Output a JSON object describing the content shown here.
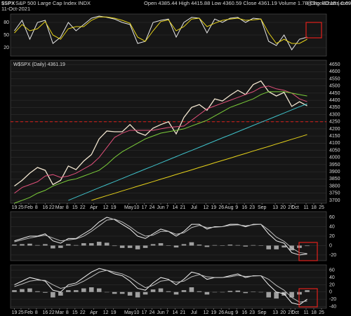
{
  "chart_data": [
    {
      "type": "line",
      "title": "$SPX",
      "subtitle": "S&P 500 Large Cap Index INDX",
      "date": "11-Oct-2021",
      "quote": "Open 4385.44 High 4415.88 Low 4360.59 Close 4361.19 Volume 1.7B Chg -30.15 (-0.69%)",
      "watermark": "@StockCharts.com",
      "x": [
        0,
        1,
        2,
        3,
        4,
        5,
        6,
        7,
        8,
        9,
        10,
        11,
        12,
        13,
        14,
        15,
        16,
        17,
        18,
        19,
        20,
        21,
        22,
        23,
        24,
        25,
        26,
        27,
        28,
        29,
        30,
        31,
        32,
        33,
        34,
        35,
        36,
        37,
        38
      ],
      "xlim": [
        -0.5,
        40.5
      ],
      "ylim": [
        0,
        100
      ],
      "yticks": [
        20,
        50,
        80
      ],
      "grid": true,
      "series": [
        {
          "color": "#e8e8e8",
          "values": [
            60,
            85,
            40,
            80,
            85,
            30,
            45,
            80,
            60,
            75,
            90,
            95,
            92,
            88,
            80,
            75,
            30,
            35,
            80,
            85,
            88,
            45,
            80,
            92,
            90,
            55,
            88,
            80,
            90,
            92,
            80,
            90,
            88,
            35,
            25,
            50,
            15,
            40,
            45
          ]
        },
        {
          "color": "#e6d21a",
          "values": [
            55,
            75,
            60,
            65,
            82,
            50,
            40,
            65,
            70,
            70,
            85,
            93,
            93,
            90,
            85,
            78,
            45,
            35,
            60,
            82,
            86,
            60,
            70,
            88,
            90,
            70,
            78,
            85,
            88,
            90,
            85,
            86,
            88,
            55,
            30,
            40,
            30,
            30,
            40
          ]
        }
      ]
    },
    {
      "type": "line",
      "label": "W$SPX (Daily) 4361.19",
      "x": [
        0,
        1,
        2,
        3,
        4,
        5,
        6,
        7,
        8,
        9,
        10,
        11,
        12,
        13,
        14,
        15,
        16,
        17,
        18,
        19,
        20,
        21,
        22,
        23,
        24,
        25,
        26,
        27,
        28,
        29,
        30,
        31,
        32,
        33,
        34,
        35,
        36,
        37,
        38
      ],
      "xlim": [
        -0.5,
        40.5
      ],
      "ylim": [
        3680,
        4680
      ],
      "yticks": [
        3700,
        3750,
        3800,
        3850,
        3900,
        3950,
        4000,
        4050,
        4100,
        4150,
        4200,
        4250,
        4300,
        4350,
        4400,
        4450,
        4500,
        4550,
        4600,
        4650
      ],
      "grid": true,
      "hline": 4250,
      "hline_color": "#e0201c",
      "xticks": [
        {
          "value": 0,
          "label": "19"
        },
        {
          "value": 0.86,
          "label": "25"
        },
        {
          "value": 1.86,
          "label": "Feb"
        },
        {
          "value": 2.86,
          "label": "8"
        },
        {
          "value": 4,
          "label": "16"
        },
        {
          "value": 4.86,
          "label": "22"
        },
        {
          "value": 5.86,
          "label": "Mar"
        },
        {
          "value": 6.86,
          "label": "8"
        },
        {
          "value": 7.86,
          "label": "15"
        },
        {
          "value": 8.86,
          "label": "22"
        },
        {
          "value": 10.3,
          "label": "Apr"
        },
        {
          "value": 11.86,
          "label": "12"
        },
        {
          "value": 12.86,
          "label": "19"
        },
        {
          "value": 14.86,
          "label": "May"
        },
        {
          "value": 15.86,
          "label": "10"
        },
        {
          "value": 16.86,
          "label": "17"
        },
        {
          "value": 17.86,
          "label": "24"
        },
        {
          "value": 19,
          "label": "Jun"
        },
        {
          "value": 19.86,
          "label": "7"
        },
        {
          "value": 20.86,
          "label": "14"
        },
        {
          "value": 21.86,
          "label": "21"
        },
        {
          "value": 23.3,
          "label": "Jul"
        },
        {
          "value": 24.86,
          "label": "12"
        },
        {
          "value": 25.86,
          "label": "19"
        },
        {
          "value": 26.86,
          "label": "26"
        },
        {
          "value": 27.86,
          "label": "Aug"
        },
        {
          "value": 28.86,
          "label": "9"
        },
        {
          "value": 29.86,
          "label": "16"
        },
        {
          "value": 30.86,
          "label": "23"
        },
        {
          "value": 32.14,
          "label": "Sep"
        },
        {
          "value": 33.86,
          "label": "13"
        },
        {
          "value": 34.86,
          "label": "20"
        },
        {
          "value": 35.86,
          "label": "27"
        },
        {
          "value": 36.43,
          "label": "Oct"
        },
        {
          "value": 37.86,
          "label": "11"
        },
        {
          "value": 38.86,
          "label": "18"
        },
        {
          "value": 39.86,
          "label": "25"
        }
      ],
      "series": [
        {
          "color": "#f2e6d0",
          "values": [
            3800,
            3840,
            3890,
            3930,
            3910,
            3810,
            3840,
            3940,
            3915,
            3975,
            4020,
            4130,
            4185,
            4180,
            4180,
            4230,
            4175,
            4155,
            4205,
            4230,
            4250,
            4165,
            4280,
            4350,
            4370,
            4330,
            4410,
            4395,
            4435,
            4470,
            4440,
            4510,
            4535,
            4460,
            4430,
            4455,
            4357,
            4390,
            4361
          ]
        },
        {
          "color": "#e0507a",
          "values": [
            3750,
            3790,
            3810,
            3830,
            3870,
            3880,
            3860,
            3870,
            3890,
            3920,
            3950,
            4000,
            4070,
            4140,
            4170,
            4190,
            4190,
            4190,
            4190,
            4200,
            4210,
            4215,
            4220,
            4260,
            4300,
            4340,
            4360,
            4380,
            4400,
            4420,
            4440,
            4460,
            4490,
            4500,
            4480,
            4470,
            4450,
            4410,
            4390
          ]
        },
        {
          "color": "#7ccf3a",
          "values": [
            3680,
            3700,
            3720,
            3750,
            3770,
            3800,
            3820,
            3840,
            3850,
            3870,
            3890,
            3910,
            3950,
            4000,
            4040,
            4070,
            4100,
            4130,
            4150,
            4170,
            4180,
            4190,
            4200,
            4220,
            4240,
            4260,
            4290,
            4320,
            4350,
            4370,
            4390,
            4410,
            4440,
            4460,
            4460,
            4460,
            4450,
            4440,
            4430
          ]
        },
        {
          "color": "#3fc1c9",
          "values": [
            null,
            null,
            null,
            null,
            null,
            null,
            null,
            3700,
            3722,
            3744,
            3766,
            3788,
            3810,
            3831,
            3853,
            3875,
            3897,
            3919,
            3940,
            3962,
            3984,
            4006,
            4028,
            4049,
            4071,
            4093,
            4115,
            4137,
            4158,
            4180,
            4202,
            4224,
            4246,
            4267,
            4289,
            4311,
            4333,
            4355,
            4375
          ]
        },
        {
          "color": "#e6d21a",
          "values": [
            null,
            null,
            null,
            null,
            null,
            null,
            null,
            null,
            null,
            null,
            3700,
            3716,
            3733,
            3749,
            3766,
            3782,
            3799,
            3815,
            3831,
            3848,
            3864,
            3881,
            3897,
            3913,
            3930,
            3946,
            3963,
            3979,
            3995,
            4012,
            4028,
            4045,
            4061,
            4077,
            4094,
            4110,
            4127,
            4143,
            4160
          ]
        }
      ]
    },
    {
      "type": "macd",
      "x": [
        0,
        1,
        2,
        3,
        4,
        5,
        6,
        7,
        8,
        9,
        10,
        11,
        12,
        13,
        14,
        15,
        16,
        17,
        18,
        19,
        20,
        21,
        22,
        23,
        24,
        25,
        26,
        27,
        28,
        29,
        30,
        31,
        32,
        33,
        34,
        35,
        36,
        37,
        38
      ],
      "xlim": [
        -0.5,
        40.5
      ],
      "ylim": [
        -32,
        72
      ],
      "yticks": [
        -20,
        0,
        20,
        40,
        60
      ],
      "grid": true,
      "series": [
        {
          "color": "#a0a0a0",
          "kind": "bar",
          "values": [
            2,
            3,
            4,
            1,
            3,
            -6,
            -5,
            3,
            1,
            5,
            5,
            8,
            6,
            -1,
            -5,
            -5,
            -8,
            -5,
            3,
            5,
            0,
            -4,
            3,
            7,
            2,
            -3,
            1,
            0,
            2,
            1,
            -2,
            1,
            0,
            -8,
            -8,
            -4,
            -10,
            -5,
            -1
          ]
        },
        {
          "color": "#f0f0f0",
          "values": [
            10,
            15,
            20,
            20,
            25,
            10,
            5,
            15,
            15,
            25,
            35,
            50,
            60,
            55,
            45,
            35,
            20,
            15,
            25,
            35,
            30,
            20,
            30,
            45,
            45,
            35,
            40,
            40,
            45,
            45,
            40,
            45,
            45,
            25,
            10,
            5,
            -15,
            -20,
            -18
          ]
        },
        {
          "color": "#bdbdbd",
          "values": [
            8,
            12,
            16,
            19,
            22,
            16,
            10,
            12,
            14,
            20,
            30,
            42,
            54,
            56,
            50,
            40,
            28,
            20,
            22,
            30,
            30,
            24,
            27,
            38,
            43,
            38,
            39,
            40,
            43,
            44,
            42,
            44,
            45,
            33,
            18,
            9,
            -5,
            -15,
            -17
          ]
        }
      ]
    },
    {
      "type": "macd",
      "x": [
        0,
        1,
        2,
        3,
        4,
        5,
        6,
        7,
        8,
        9,
        10,
        11,
        12,
        13,
        14,
        15,
        16,
        17,
        18,
        19,
        20,
        21,
        22,
        23,
        24,
        25,
        26,
        27,
        28,
        29,
        30,
        31,
        32,
        33,
        34,
        35,
        36,
        37,
        38
      ],
      "xlim": [
        -0.5,
        40.5
      ],
      "ylim": [
        -45,
        75
      ],
      "yticks": [
        -40,
        -20,
        0,
        20,
        40,
        60
      ],
      "grid": true,
      "xticks": [
        {
          "value": 0,
          "label": "19"
        },
        {
          "value": 0.86,
          "label": "25"
        },
        {
          "value": 1.86,
          "label": "Feb"
        },
        {
          "value": 2.86,
          "label": "8"
        },
        {
          "value": 4,
          "label": "16"
        },
        {
          "value": 4.86,
          "label": "22"
        },
        {
          "value": 5.86,
          "label": "Mar"
        },
        {
          "value": 6.86,
          "label": "8"
        },
        {
          "value": 7.86,
          "label": "15"
        },
        {
          "value": 8.86,
          "label": "22"
        },
        {
          "value": 10.3,
          "label": "Apr"
        },
        {
          "value": 11.86,
          "label": "12"
        },
        {
          "value": 12.86,
          "label": "19"
        },
        {
          "value": 14.86,
          "label": "May"
        },
        {
          "value": 15.86,
          "label": "10"
        },
        {
          "value": 16.86,
          "label": "17"
        },
        {
          "value": 17.86,
          "label": "24"
        },
        {
          "value": 19,
          "label": "Jun"
        },
        {
          "value": 19.86,
          "label": "7"
        },
        {
          "value": 20.86,
          "label": "14"
        },
        {
          "value": 21.86,
          "label": "21"
        },
        {
          "value": 23.3,
          "label": "Jul"
        },
        {
          "value": 24.86,
          "label": "12"
        },
        {
          "value": 25.86,
          "label": "19"
        },
        {
          "value": 26.86,
          "label": "26"
        },
        {
          "value": 27.86,
          "label": "Aug"
        },
        {
          "value": 28.86,
          "label": "9"
        },
        {
          "value": 29.86,
          "label": "16"
        },
        {
          "value": 30.86,
          "label": "23"
        },
        {
          "value": 32.14,
          "label": "Sep"
        },
        {
          "value": 33.86,
          "label": "13"
        },
        {
          "value": 34.86,
          "label": "20"
        },
        {
          "value": 35.86,
          "label": "27"
        },
        {
          "value": 36.43,
          "label": "Oct"
        },
        {
          "value": 37.86,
          "label": "11"
        },
        {
          "value": 38.86,
          "label": "18"
        },
        {
          "value": 39.86,
          "label": "25"
        }
      ],
      "series": [
        {
          "color": "#a0a0a0",
          "kind": "bar",
          "values": [
            5,
            8,
            10,
            2,
            -2,
            -15,
            -10,
            5,
            5,
            10,
            13,
            10,
            0,
            -5,
            -5,
            -10,
            -15,
            -7,
            7,
            10,
            2,
            -7,
            5,
            13,
            2,
            -7,
            0,
            0,
            3,
            4,
            -3,
            1,
            0,
            -15,
            -18,
            -10,
            -15,
            -7,
            5
          ]
        },
        {
          "color": "#f0f0f0",
          "values": [
            20,
            30,
            40,
            35,
            30,
            5,
            0,
            20,
            25,
            40,
            55,
            65,
            60,
            50,
            45,
            30,
            10,
            5,
            25,
            40,
            35,
            20,
            35,
            55,
            50,
            35,
            40,
            40,
            45,
            50,
            40,
            45,
            45,
            20,
            0,
            -5,
            -30,
            -35,
            -20
          ]
        },
        {
          "color": "#bdbdbd",
          "values": [
            15,
            22,
            30,
            33,
            32,
            20,
            10,
            15,
            20,
            30,
            42,
            55,
            60,
            55,
            50,
            40,
            25,
            12,
            18,
            30,
            33,
            27,
            30,
            42,
            48,
            42,
            40,
            40,
            42,
            46,
            43,
            44,
            45,
            35,
            18,
            5,
            -15,
            -28,
            -25
          ]
        }
      ]
    }
  ]
}
